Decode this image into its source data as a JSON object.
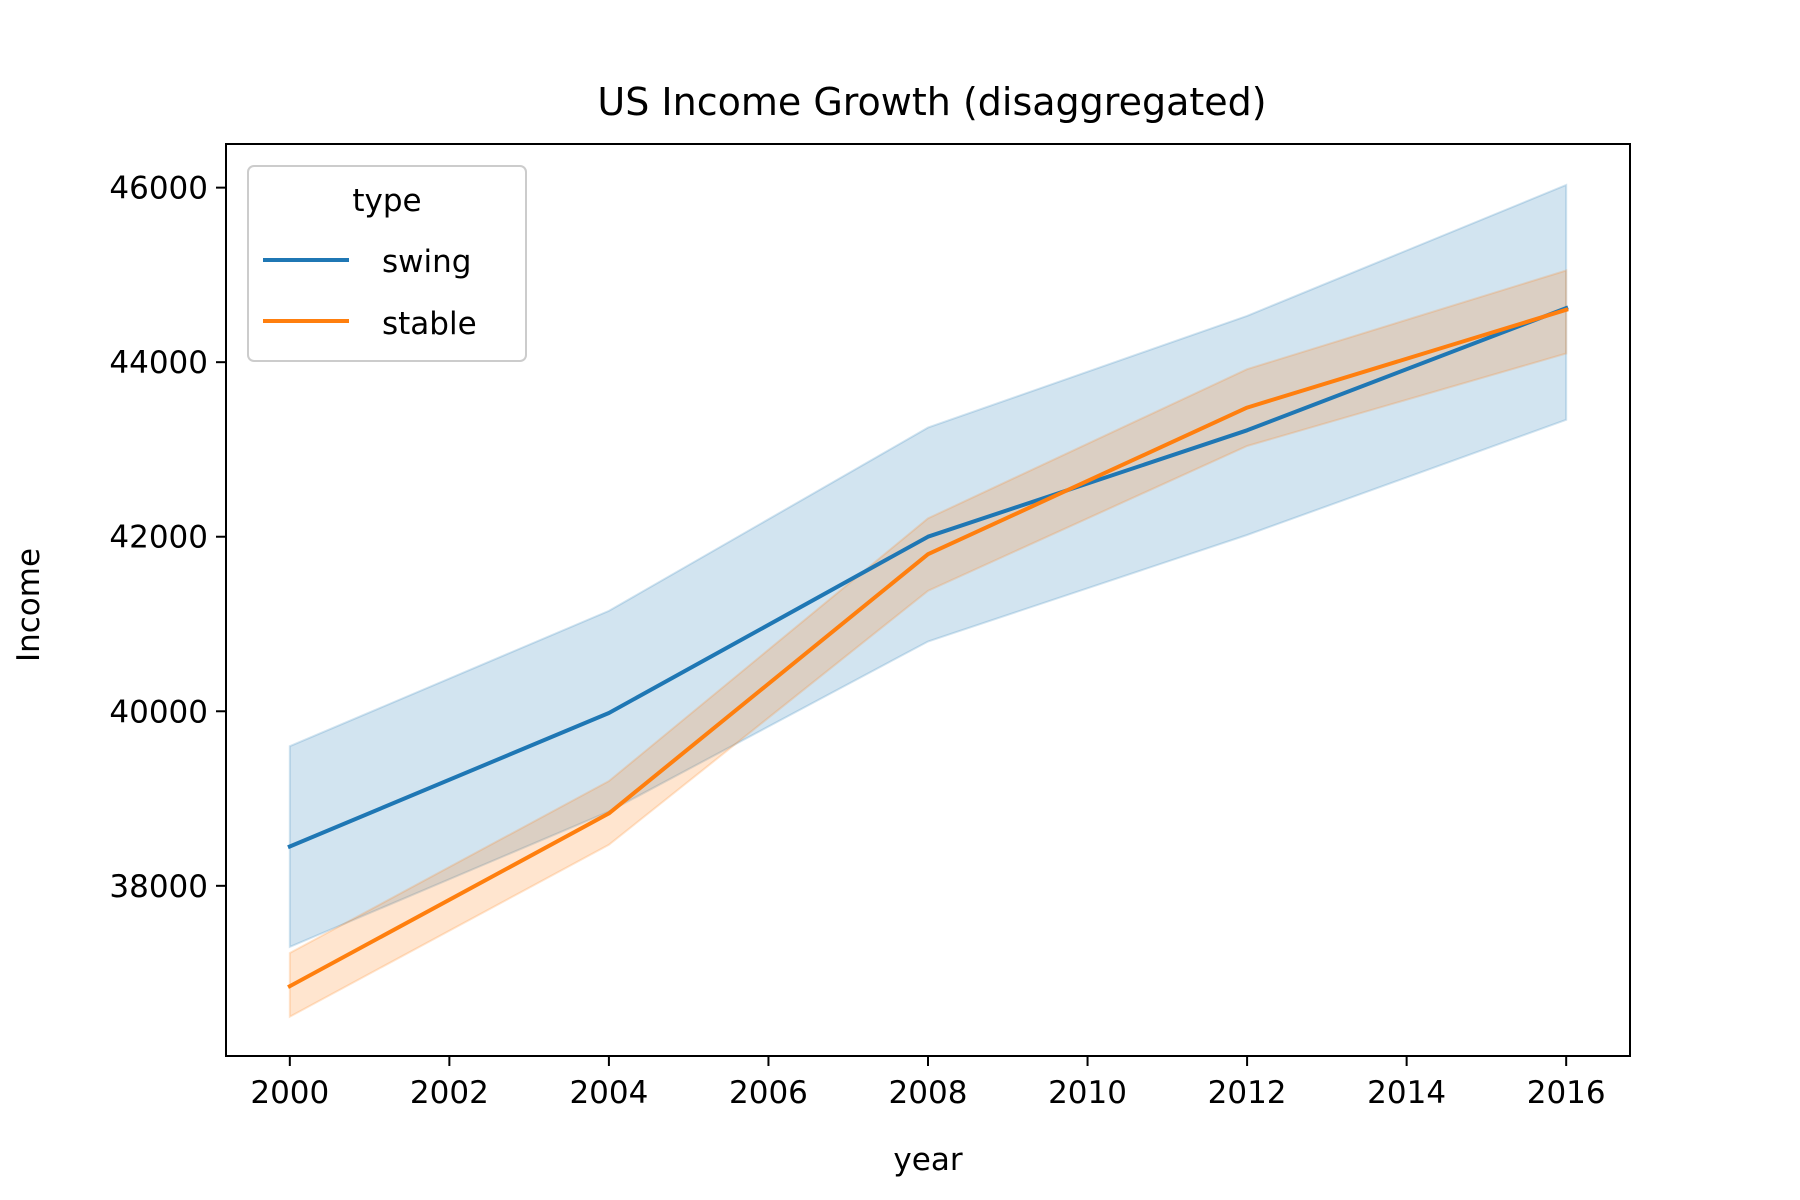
{
  "chart_data": {
    "type": "line",
    "title": "US Income Growth (disaggregated)",
    "xlabel": "year",
    "ylabel": "Income",
    "x": [
      2000,
      2004,
      2008,
      2012,
      2016
    ],
    "x_ticks": [
      2000,
      2002,
      2004,
      2006,
      2008,
      2010,
      2012,
      2014,
      2016
    ],
    "y_ticks": [
      38000,
      40000,
      42000,
      44000,
      46000
    ],
    "xlim": [
      1999.2,
      2016.8
    ],
    "ylim": [
      36050,
      46500
    ],
    "grid": false,
    "legend": {
      "title": "type",
      "position": "top-left"
    },
    "series": [
      {
        "name": "swing",
        "color": "#1f77b4",
        "values": [
          38450,
          39980,
          42000,
          43220,
          44620
        ],
        "ci_low": [
          37300,
          38850,
          40800,
          42020,
          43340
        ],
        "ci_high": [
          39600,
          41150,
          43250,
          44530,
          46030
        ]
      },
      {
        "name": "stable",
        "color": "#ff7f0e",
        "values": [
          36850,
          38830,
          41800,
          43480,
          44600
        ],
        "ci_low": [
          36500,
          38470,
          41380,
          43040,
          44100
        ],
        "ci_high": [
          37230,
          39200,
          42210,
          43920,
          45050
        ]
      }
    ]
  }
}
